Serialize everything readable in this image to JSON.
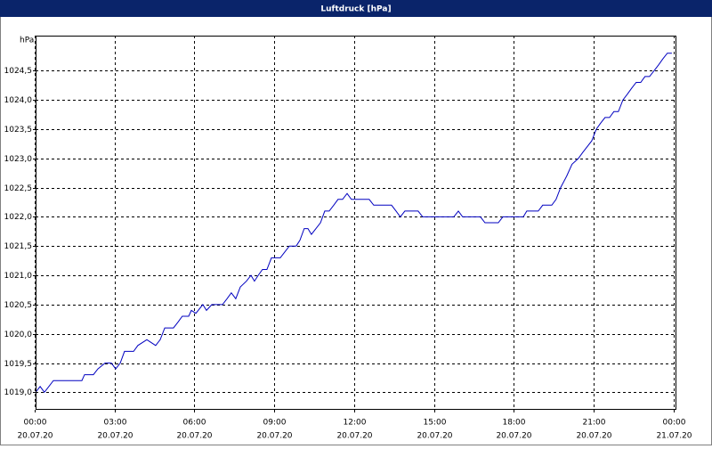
{
  "window_title": "Luftdruck [hPa]",
  "chart_data": {
    "type": "line",
    "y_label": "hPa",
    "x": [
      0,
      0.17,
      0.33,
      0.67,
      1.74,
      1.84,
      2.17,
      2.34,
      2.61,
      2.84,
      3.01,
      3.18,
      3.34,
      3.68,
      3.84,
      4.18,
      4.51,
      4.68,
      4.85,
      5.18,
      5.35,
      5.51,
      5.75,
      5.85,
      6.02,
      6.28,
      6.42,
      6.62,
      7.02,
      7.19,
      7.35,
      7.52,
      7.69,
      7.92,
      8.09,
      8.22,
      8.36,
      8.52,
      8.69,
      8.86,
      9.19,
      9.36,
      9.53,
      9.79,
      9.93,
      10.09,
      10.23,
      10.36,
      10.53,
      10.7,
      10.86,
      11.03,
      11.2,
      11.36,
      11.53,
      11.7,
      11.86,
      12.53,
      12.7,
      13.37,
      13.54,
      13.7,
      13.87,
      14.37,
      14.54,
      15.71,
      15.88,
      16.04,
      16.71,
      16.88,
      17.38,
      17.55,
      18.32,
      18.45,
      18.88,
      19.05,
      19.39,
      19.55,
      19.72,
      19.95,
      20.15,
      20.39,
      20.55,
      20.89,
      21.06,
      21.22,
      21.39,
      21.56,
      21.72,
      21.89,
      22.06,
      22.23,
      22.39,
      22.56,
      22.73,
      22.89,
      23.06,
      23.23,
      23.4,
      23.56,
      23.73,
      23.9
    ],
    "series": [
      {
        "name": "Luftdruck",
        "color": "#0000c0",
        "values": [
          1019.0,
          1019.1,
          1019.0,
          1019.2,
          1019.2,
          1019.3,
          1019.3,
          1019.4,
          1019.5,
          1019.5,
          1019.4,
          1019.5,
          1019.7,
          1019.7,
          1019.8,
          1019.9,
          1019.8,
          1019.9,
          1020.1,
          1020.1,
          1020.2,
          1020.3,
          1020.3,
          1020.4,
          1020.35,
          1020.5,
          1020.4,
          1020.5,
          1020.5,
          1020.6,
          1020.7,
          1020.6,
          1020.8,
          1020.9,
          1021.0,
          1020.9,
          1021.0,
          1021.1,
          1021.1,
          1021.3,
          1021.3,
          1021.4,
          1021.5,
          1021.5,
          1021.6,
          1021.8,
          1021.8,
          1021.7,
          1021.8,
          1021.9,
          1022.1,
          1022.1,
          1022.2,
          1022.3,
          1022.3,
          1022.4,
          1022.3,
          1022.3,
          1022.2,
          1022.2,
          1022.1,
          1022.0,
          1022.1,
          1022.1,
          1022.0,
          1022.0,
          1022.1,
          1022.0,
          1022.0,
          1021.9,
          1021.9,
          1022.0,
          1022.0,
          1022.1,
          1022.1,
          1022.2,
          1022.2,
          1022.3,
          1022.5,
          1022.7,
          1022.9,
          1023.0,
          1023.1,
          1023.3,
          1023.5,
          1023.6,
          1023.7,
          1023.7,
          1023.8,
          1023.8,
          1024.0,
          1024.1,
          1024.2,
          1024.3,
          1024.3,
          1024.4,
          1024.4,
          1024.5,
          1024.6,
          1024.7,
          1024.8,
          1024.8
        ]
      }
    ],
    "xlim": [
      0,
      24.07
    ],
    "xticks": [
      {
        "value": 0,
        "label": "00:00"
      },
      {
        "value": 3,
        "label": "03:00"
      },
      {
        "value": 6,
        "label": "06:00"
      },
      {
        "value": 9,
        "label": "09:00"
      },
      {
        "value": 12,
        "label": "12:00"
      },
      {
        "value": 15,
        "label": "15:00"
      },
      {
        "value": 18,
        "label": "18:00"
      },
      {
        "value": 21,
        "label": "21:00"
      },
      {
        "value": 24,
        "label": "00:00"
      }
    ],
    "xtick_dates": [
      "20.07.20",
      "20.07.20",
      "20.07.20",
      "20.07.20",
      "20.07.20",
      "20.07.20",
      "20.07.20",
      "20.07.20",
      "21.07.20"
    ],
    "ylim": [
      1018.7,
      1025.1
    ],
    "yticks": [
      {
        "value": 1019.0,
        "label": "1019,0"
      },
      {
        "value": 1019.5,
        "label": "1019,5"
      },
      {
        "value": 1020.0,
        "label": "1020,0"
      },
      {
        "value": 1020.5,
        "label": "1020,5"
      },
      {
        "value": 1021.0,
        "label": "1021,0"
      },
      {
        "value": 1021.5,
        "label": "1021,5"
      },
      {
        "value": 1022.0,
        "label": "1022,0"
      },
      {
        "value": 1022.5,
        "label": "1022,5"
      },
      {
        "value": 1023.0,
        "label": "1023,0"
      },
      {
        "value": 1023.5,
        "label": "1023,5"
      },
      {
        "value": 1024.0,
        "label": "1024,0"
      },
      {
        "value": 1024.5,
        "label": "1024,5"
      }
    ],
    "grid": true
  }
}
